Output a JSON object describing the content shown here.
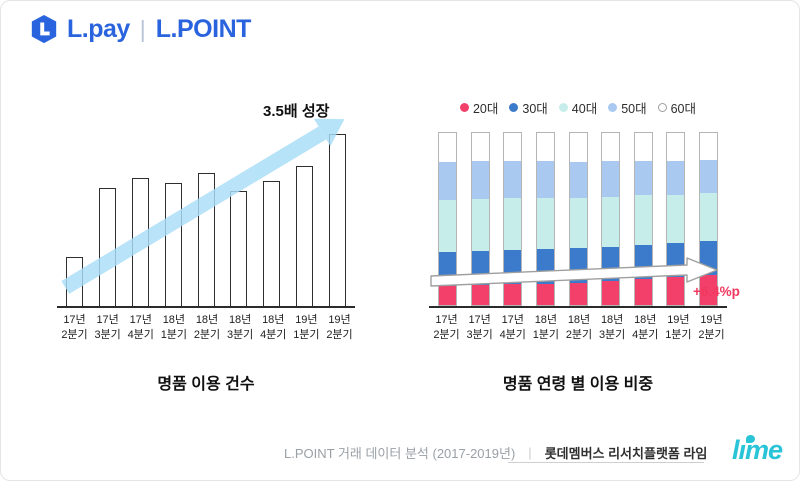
{
  "header": {
    "lpay": "L.pay",
    "separator": "|",
    "lpoint": "L.POINT"
  },
  "colors": {
    "brand_blue": "#2a63de",
    "growth_arrow_blue": "#a8ddf8",
    "age20_red": "#f2406a",
    "age30_blue": "#3c7bcb",
    "age40_cyan": "#c7edeb",
    "age50_lightblue": "#a9c9f1",
    "age60_white": "#ffffff",
    "annotation_red": "#f2385f",
    "lime_cyan": "#29c4d8"
  },
  "chart_data": [
    {
      "type": "bar",
      "title": "명품 이용 건수",
      "annotation": "3.5배 성장",
      "categories": [
        "17년 2분기",
        "17년 3분기",
        "17년 4분기",
        "18년 1분기",
        "18년 2분기",
        "18년 3분기",
        "18년 4분기",
        "19년 1분기",
        "19년 2분기"
      ],
      "values": [
        1.0,
        2.4,
        2.6,
        2.5,
        2.7,
        2.35,
        2.55,
        2.85,
        3.5
      ],
      "ylim": [
        0,
        3.5
      ],
      "xlabel": "",
      "ylabel": "",
      "grid": false,
      "bar_fill": "#ffffff",
      "bar_border": "#2e2e2e"
    },
    {
      "type": "bar",
      "stacked": true,
      "title": "명품 연령 별 이용 비중",
      "annotation": "+6.4%p",
      "categories": [
        "17년 2분기",
        "17년 3분기",
        "17년 4분기",
        "18년 1분기",
        "18년 2분기",
        "18년 3분기",
        "18년 4분기",
        "19년 1분기",
        "19년 2분기"
      ],
      "series": [
        {
          "name": "20대",
          "color": "#f2406a",
          "values": [
            11.0,
            11.5,
            12.0,
            12.5,
            13.0,
            14.0,
            15.0,
            16.0,
            17.4
          ]
        },
        {
          "name": "30대",
          "color": "#3c7bcb",
          "values": [
            20,
            20,
            20,
            20,
            20,
            20,
            20,
            20,
            20
          ]
        },
        {
          "name": "40대",
          "color": "#c7edeb",
          "values": [
            30,
            30,
            30,
            30,
            29,
            29,
            29,
            28,
            28
          ]
        },
        {
          "name": "50대",
          "color": "#a9c9f1",
          "values": [
            22,
            22,
            21.5,
            21,
            21,
            20.5,
            20,
            20,
            19
          ]
        },
        {
          "name": "60대",
          "color": "#ffffff",
          "values": [
            17,
            16.5,
            16.5,
            16.5,
            17,
            16.5,
            16,
            16,
            15.6
          ]
        }
      ],
      "ylim": [
        0,
        100
      ],
      "xlabel": "",
      "ylabel": "",
      "grid": false,
      "legend_position": "top"
    }
  ],
  "footer": {
    "source": "L.POINT 거래 데이터 분석 (2017-2019년)",
    "separator": "|",
    "platform": "롯데멤버스 리서치플랫폼 라임",
    "logo_text": "lime"
  }
}
